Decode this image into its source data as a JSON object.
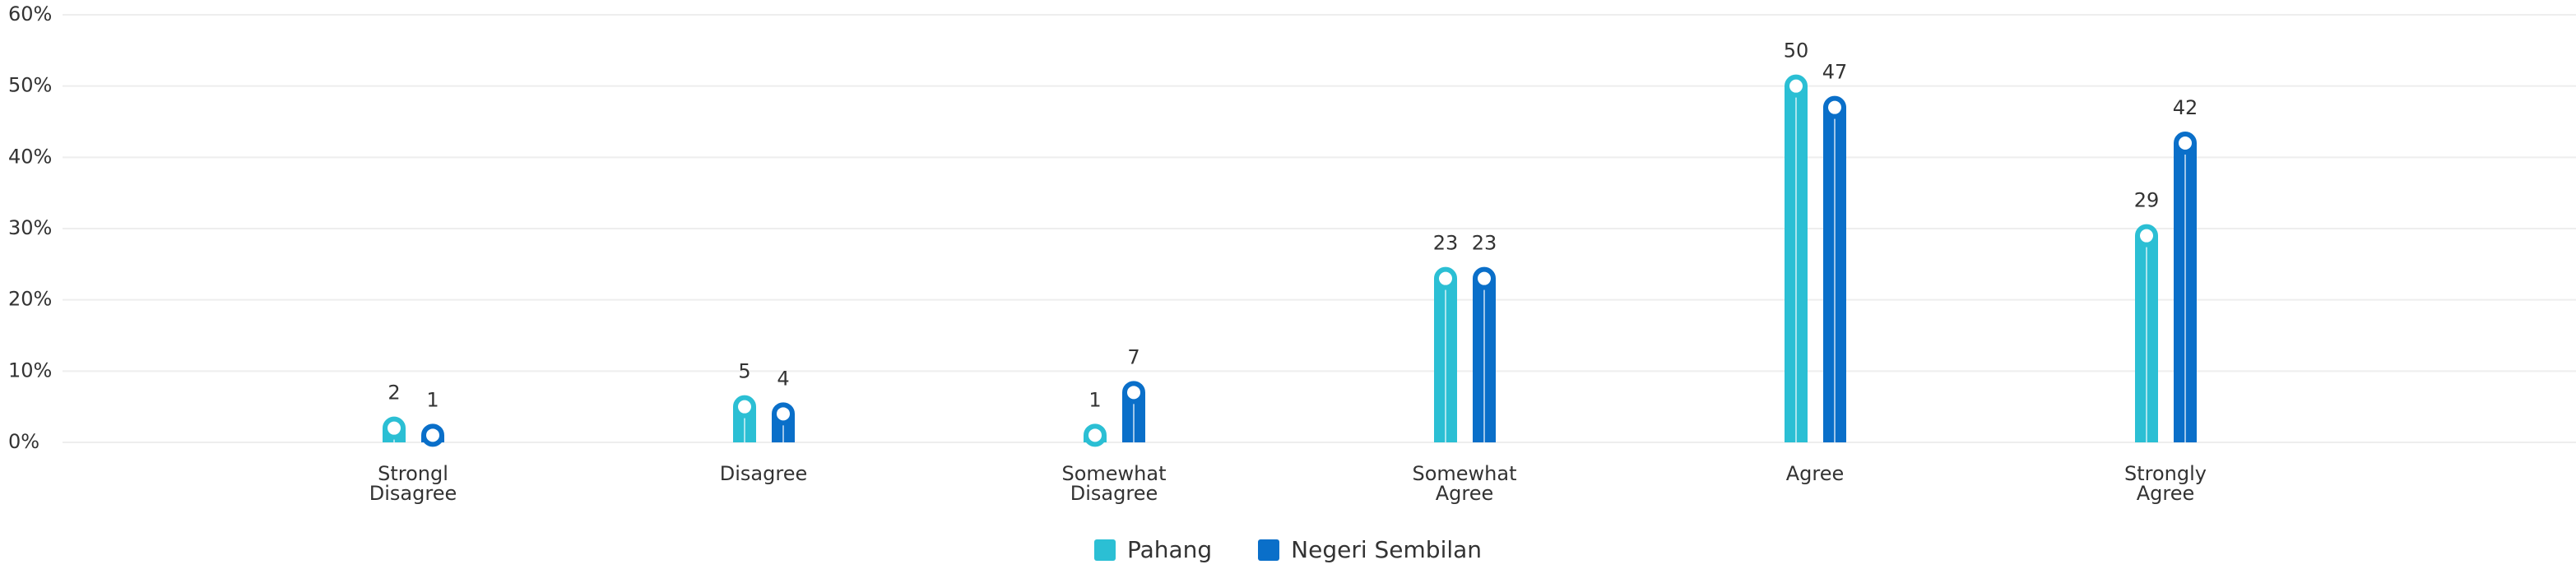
{
  "chart_data": {
    "type": "bar",
    "categories": [
      "Strongl Disagree",
      "Disagree",
      "Somewhat Disagree",
      "Somewhat Agree",
      "Agree",
      "Strongly Agree"
    ],
    "series": [
      {
        "name": "Pahang",
        "color": "#2bbfd4",
        "values": [
          2,
          5,
          1,
          23,
          50,
          29
        ]
      },
      {
        "name": "Negeri Sembilan",
        "color": "#0a6fc9",
        "values": [
          1,
          4,
          7,
          23,
          47,
          42
        ]
      }
    ],
    "ylim": [
      0,
      60
    ],
    "yticks": [
      {
        "value": 0,
        "label": "0%"
      },
      {
        "value": 10,
        "label": "10%"
      },
      {
        "value": 20,
        "label": "20%"
      },
      {
        "value": 30,
        "label": "30%"
      },
      {
        "value": 40,
        "label": "40%"
      },
      {
        "value": 50,
        "label": "50%"
      },
      {
        "value": 60,
        "label": "60%"
      }
    ],
    "grid": true
  }
}
